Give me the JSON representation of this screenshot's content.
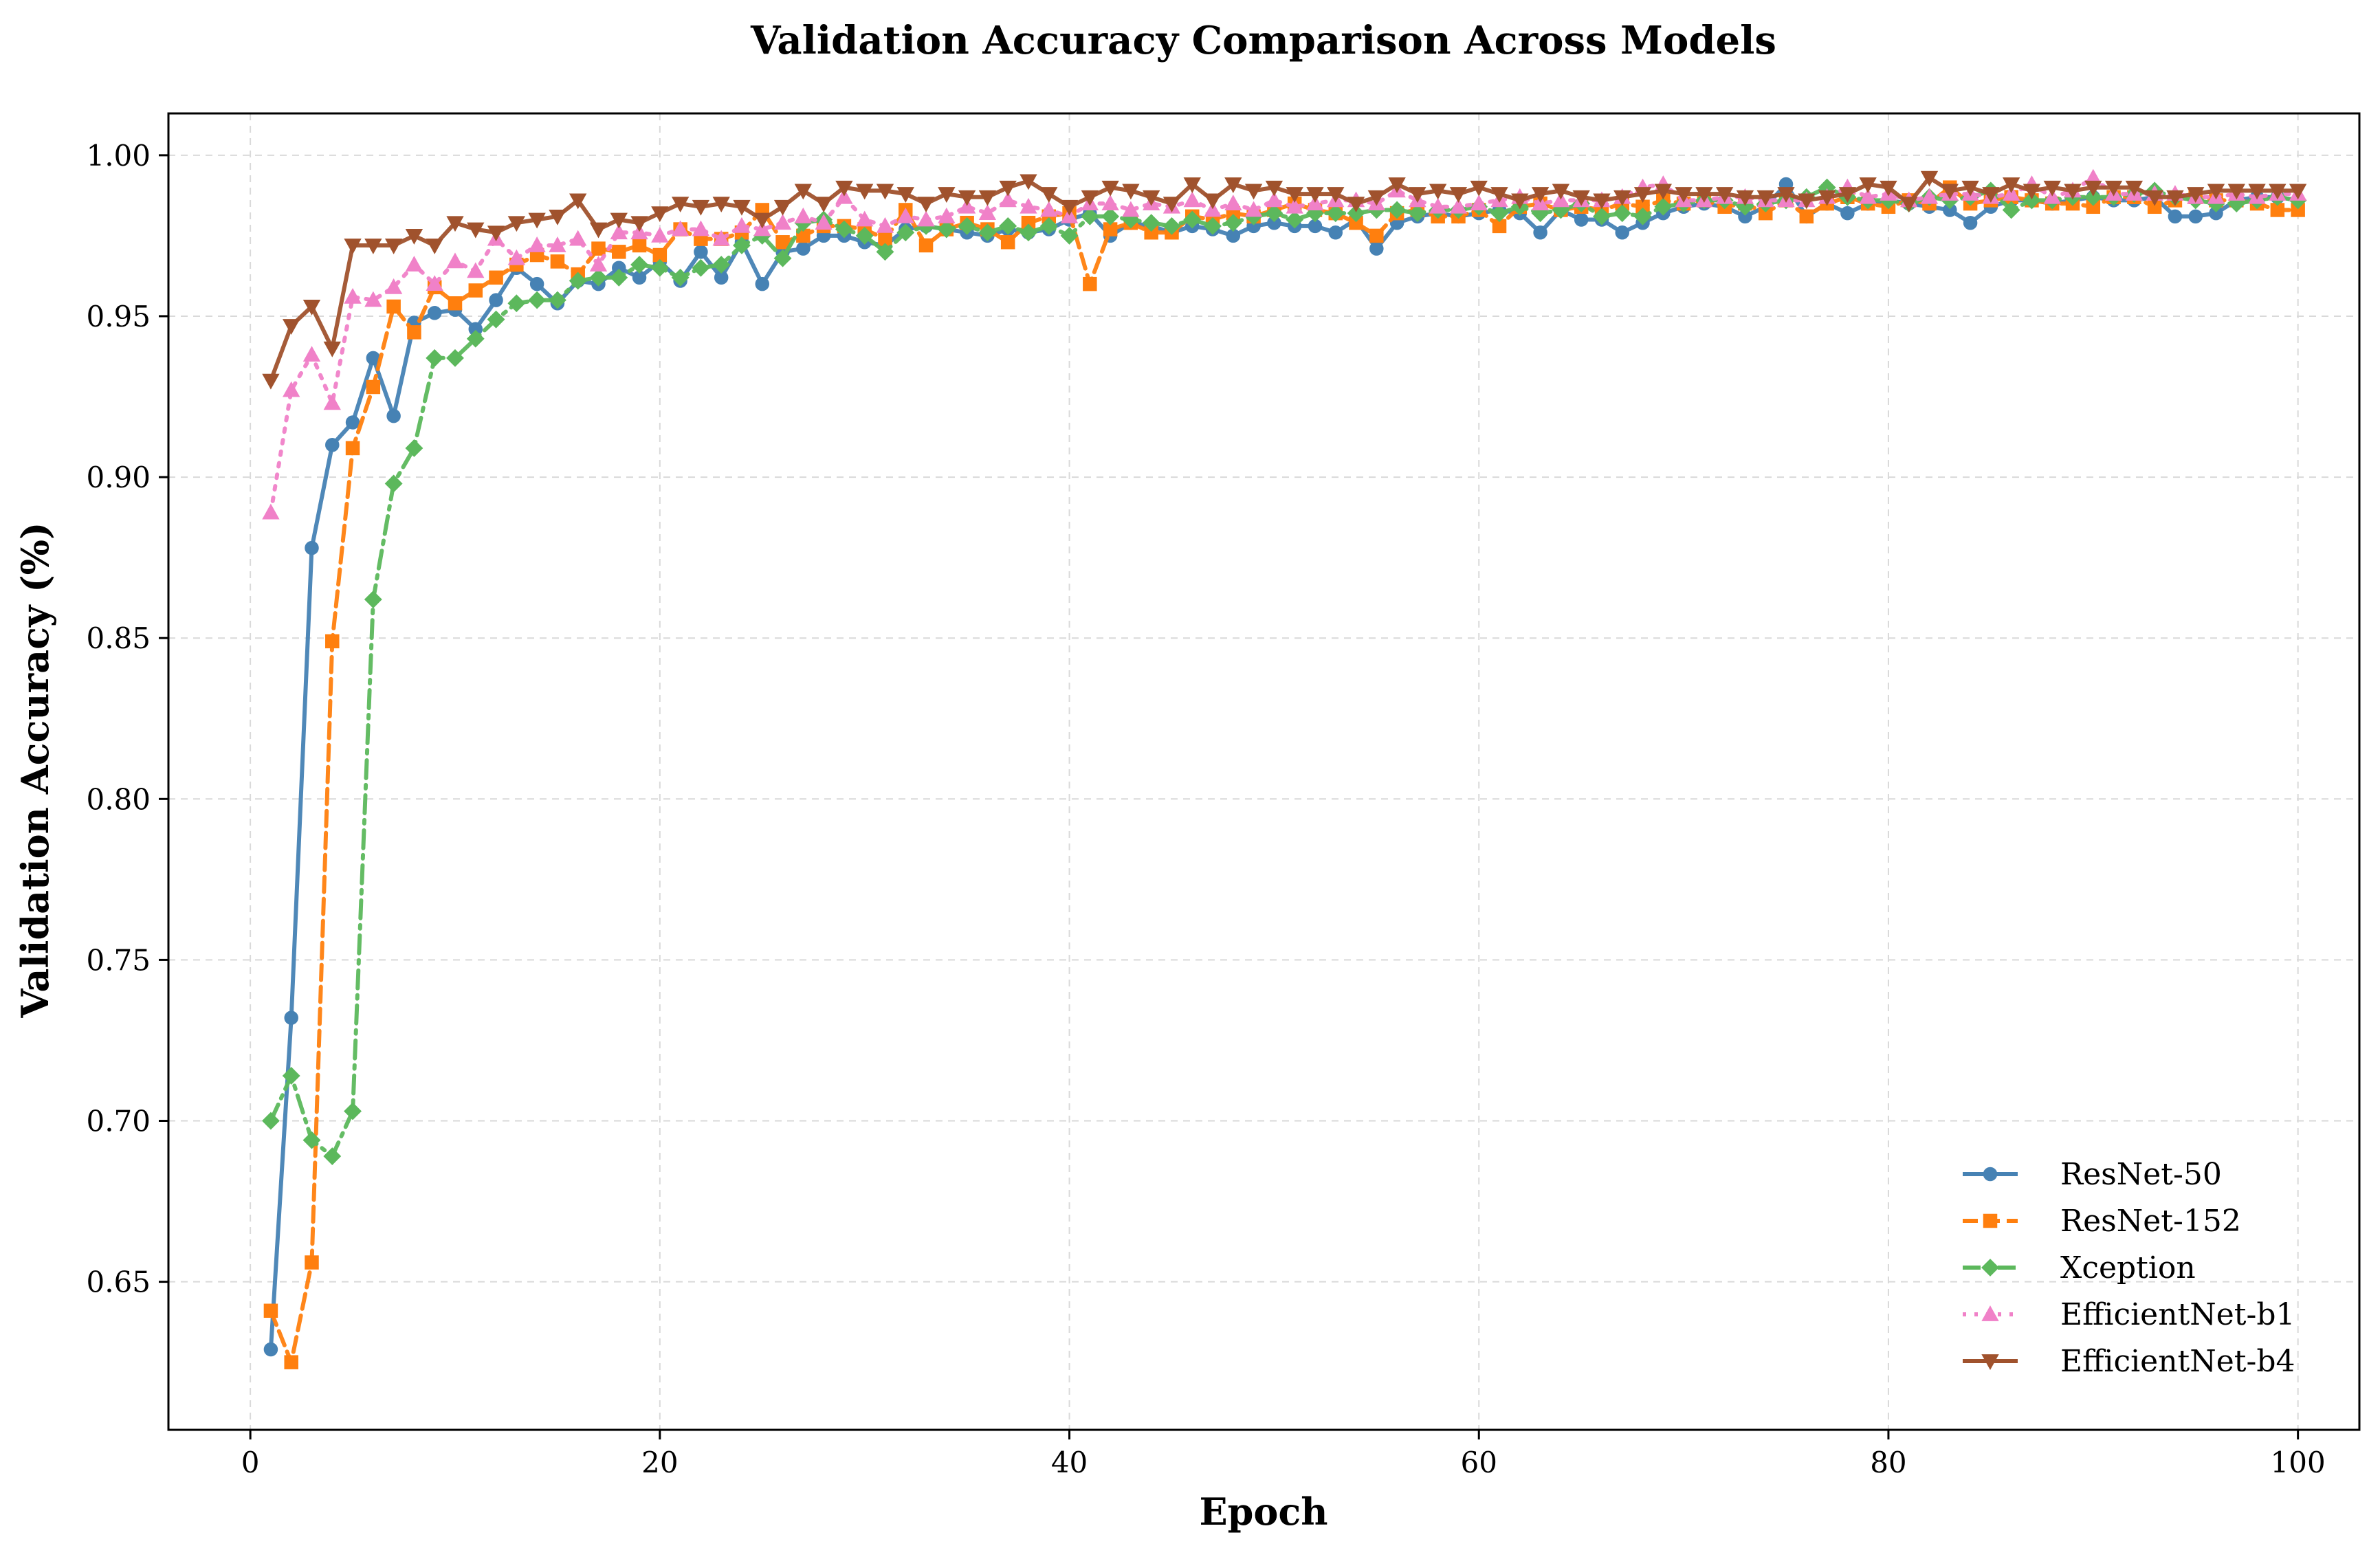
{
  "chart_data": {
    "type": "line",
    "title": "Validation Accuracy Comparison Across Models",
    "xlabel": "Epoch",
    "ylabel": "Validation Accuracy (%)",
    "xlim": [
      -4,
      103
    ],
    "ylim": [
      0.604,
      1.013
    ],
    "xticks": [
      0,
      20,
      40,
      60,
      80,
      100
    ],
    "yticks": [
      0.65,
      0.7,
      0.75,
      0.8,
      0.85,
      0.9,
      0.95,
      1.0
    ],
    "ytick_labels": [
      "0.65",
      "0.70",
      "0.75",
      "0.80",
      "0.85",
      "0.90",
      "0.95",
      "1.00"
    ],
    "grid": true,
    "legend_position": "lower-right",
    "series": [
      {
        "name": "ResNet-50",
        "color": "#4682B4",
        "marker": "circle",
        "dash": "solid",
        "values": [
          0.629,
          0.732,
          0.878,
          0.91,
          0.917,
          0.937,
          0.919,
          0.948,
          0.951,
          0.952,
          0.946,
          0.955,
          0.965,
          0.96,
          0.954,
          0.961,
          0.96,
          0.965,
          0.962,
          0.967,
          0.961,
          0.97,
          0.962,
          0.973,
          0.96,
          0.97,
          0.971,
          0.975,
          0.975,
          0.973,
          0.972,
          0.977,
          0.978,
          0.977,
          0.976,
          0.975,
          0.977,
          0.976,
          0.977,
          0.98,
          0.982,
          0.975,
          0.979,
          0.978,
          0.976,
          0.978,
          0.977,
          0.975,
          0.978,
          0.979,
          0.978,
          0.978,
          0.976,
          0.98,
          0.971,
          0.979,
          0.981,
          0.982,
          0.981,
          0.982,
          0.983,
          0.982,
          0.976,
          0.983,
          0.98,
          0.98,
          0.976,
          0.979,
          0.982,
          0.984,
          0.985,
          0.984,
          0.981,
          0.984,
          0.991,
          0.981,
          0.985,
          0.982,
          0.985,
          0.986,
          0.985,
          0.984,
          0.983,
          0.979,
          0.984,
          0.986,
          0.986,
          0.985,
          0.986,
          0.987,
          0.986,
          0.986,
          0.987,
          0.981,
          0.981,
          0.982,
          0.986,
          0.987,
          0.987,
          0.986
        ]
      },
      {
        "name": "ResNet-152",
        "color": "#FF7F0E",
        "marker": "square",
        "dash": "dashed",
        "values": [
          0.641,
          0.625,
          0.656,
          0.849,
          0.909,
          0.928,
          0.953,
          0.945,
          0.959,
          0.954,
          0.958,
          0.962,
          0.966,
          0.969,
          0.967,
          0.963,
          0.971,
          0.97,
          0.972,
          0.969,
          0.977,
          0.974,
          0.974,
          0.976,
          0.983,
          0.973,
          0.975,
          0.978,
          0.978,
          0.977,
          0.974,
          0.983,
          0.972,
          0.977,
          0.979,
          0.977,
          0.973,
          0.979,
          0.981,
          0.982,
          0.96,
          0.977,
          0.979,
          0.976,
          0.976,
          0.981,
          0.98,
          0.982,
          0.981,
          0.983,
          0.985,
          0.983,
          0.982,
          0.979,
          0.975,
          0.982,
          0.983,
          0.981,
          0.981,
          0.983,
          0.978,
          0.984,
          0.985,
          0.983,
          0.984,
          0.983,
          0.985,
          0.984,
          0.986,
          0.985,
          0.986,
          0.984,
          0.985,
          0.982,
          0.986,
          0.981,
          0.985,
          0.987,
          0.985,
          0.984,
          0.986,
          0.985,
          0.99,
          0.985,
          0.986,
          0.987,
          0.986,
          0.985,
          0.985,
          0.984,
          0.987,
          0.987,
          0.984,
          0.986,
          0.987,
          0.986,
          0.986,
          0.985,
          0.983,
          0.983
        ]
      },
      {
        "name": "Xception",
        "color": "#5CB85C",
        "marker": "diamond",
        "dash": "dashdot",
        "values": [
          0.7,
          0.714,
          0.694,
          0.689,
          0.703,
          0.862,
          0.898,
          0.909,
          0.937,
          0.937,
          0.943,
          0.949,
          0.954,
          0.955,
          0.955,
          0.961,
          0.962,
          0.962,
          0.966,
          0.965,
          0.962,
          0.965,
          0.966,
          0.972,
          0.975,
          0.968,
          0.979,
          0.98,
          0.977,
          0.975,
          0.97,
          0.976,
          0.978,
          0.977,
          0.978,
          0.976,
          0.978,
          0.976,
          0.978,
          0.975,
          0.981,
          0.981,
          0.98,
          0.979,
          0.978,
          0.98,
          0.978,
          0.979,
          0.981,
          0.982,
          0.98,
          0.982,
          0.982,
          0.982,
          0.983,
          0.983,
          0.982,
          0.983,
          0.983,
          0.984,
          0.982,
          0.984,
          0.982,
          0.983,
          0.985,
          0.981,
          0.982,
          0.981,
          0.984,
          0.985,
          0.986,
          0.986,
          0.984,
          0.985,
          0.986,
          0.987,
          0.99,
          0.987,
          0.986,
          0.986,
          0.985,
          0.987,
          0.986,
          0.987,
          0.989,
          0.983,
          0.986,
          0.986,
          0.987,
          0.987,
          0.987,
          0.988,
          0.989,
          0.987,
          0.986,
          0.985,
          0.985,
          0.986,
          0.987,
          0.986
        ]
      },
      {
        "name": "EfficientNet-b1",
        "color": "#F081C8",
        "marker": "triangle-up",
        "dash": "dotted",
        "values": [
          0.889,
          0.927,
          0.938,
          0.923,
          0.956,
          0.955,
          0.959,
          0.966,
          0.96,
          0.967,
          0.964,
          0.974,
          0.968,
          0.972,
          0.972,
          0.974,
          0.966,
          0.976,
          0.976,
          0.975,
          0.977,
          0.977,
          0.974,
          0.978,
          0.977,
          0.979,
          0.981,
          0.979,
          0.987,
          0.98,
          0.978,
          0.981,
          0.98,
          0.981,
          0.984,
          0.982,
          0.986,
          0.984,
          0.983,
          0.981,
          0.985,
          0.985,
          0.983,
          0.985,
          0.984,
          0.986,
          0.983,
          0.985,
          0.983,
          0.986,
          0.984,
          0.985,
          0.986,
          0.986,
          0.985,
          0.989,
          0.986,
          0.984,
          0.984,
          0.985,
          0.986,
          0.987,
          0.985,
          0.986,
          0.986,
          0.986,
          0.987,
          0.99,
          0.991,
          0.986,
          0.986,
          0.987,
          0.987,
          0.986,
          0.986,
          0.986,
          0.987,
          0.99,
          0.987,
          0.988,
          0.986,
          0.987,
          0.988,
          0.988,
          0.987,
          0.988,
          0.991,
          0.987,
          0.989,
          0.993,
          0.988,
          0.988,
          0.988,
          0.988,
          0.987,
          0.987,
          0.988,
          0.987,
          0.988,
          0.988
        ]
      },
      {
        "name": "EfficientNet-b4",
        "color": "#A0522D",
        "marker": "triangle-down",
        "dash": "solid",
        "values": [
          0.93,
          0.947,
          0.953,
          0.94,
          0.972,
          0.972,
          0.972,
          0.975,
          0.972,
          0.979,
          0.977,
          0.976,
          0.979,
          0.98,
          0.981,
          0.986,
          0.977,
          0.98,
          0.979,
          0.982,
          0.985,
          0.984,
          0.985,
          0.984,
          0.98,
          0.984,
          0.989,
          0.985,
          0.99,
          0.989,
          0.989,
          0.988,
          0.985,
          0.988,
          0.987,
          0.987,
          0.99,
          0.992,
          0.988,
          0.984,
          0.987,
          0.99,
          0.989,
          0.987,
          0.985,
          0.991,
          0.986,
          0.991,
          0.989,
          0.99,
          0.988,
          0.988,
          0.988,
          0.985,
          0.987,
          0.991,
          0.988,
          0.989,
          0.988,
          0.99,
          0.988,
          0.986,
          0.988,
          0.989,
          0.987,
          0.986,
          0.987,
          0.988,
          0.989,
          0.988,
          0.988,
          0.988,
          0.987,
          0.987,
          0.988,
          0.986,
          0.987,
          0.988,
          0.991,
          0.99,
          0.985,
          0.993,
          0.989,
          0.99,
          0.988,
          0.991,
          0.989,
          0.99,
          0.989,
          0.99,
          0.99,
          0.99,
          0.987,
          0.987,
          0.988,
          0.989,
          0.989,
          0.989,
          0.989,
          0.989
        ]
      }
    ]
  }
}
